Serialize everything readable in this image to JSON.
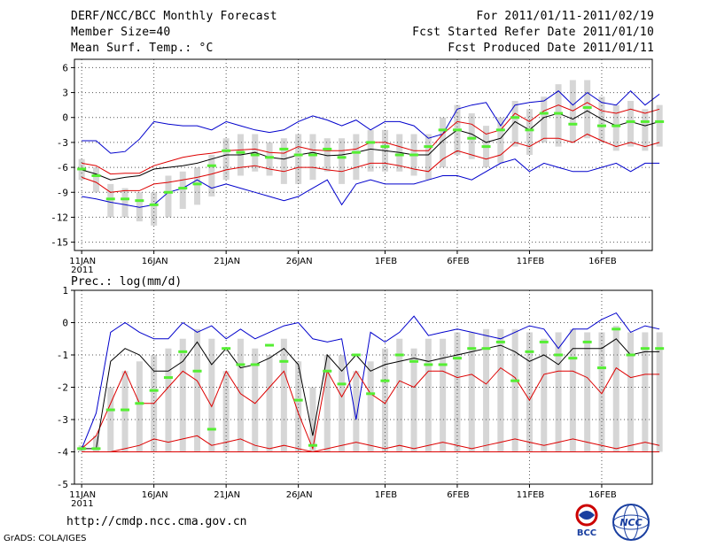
{
  "header": {
    "title": "DERF/NCC/BCC Monthly Forecast",
    "member_size": "Member Size=40",
    "variable": "Mean Surf. Temp.: °C",
    "period": "For 2011/01/11-2011/02/19",
    "started": "Fcst Started Refer Date 2011/01/10",
    "produced": "Fcst Produced Date 2011/01/11"
  },
  "footer": {
    "url": "http://cmdp.ncc.cma.gov.cn",
    "grads": "GrADS: COLA/IGES",
    "logo_bcc": "BCC",
    "logo_ncc": "NCC"
  },
  "colors": {
    "box": "#d6d6d6",
    "median": "#55ee33",
    "mean": "#000000",
    "sd": "#dd0000",
    "extreme": "#0000cc",
    "grid": "#555555"
  },
  "chart_data": [
    {
      "type": "box-plot with lines",
      "title": "Mean Surf. Temp.: °C",
      "x_tick_labels": [
        "11JAN",
        "16JAN",
        "21JAN",
        "26JAN",
        "1FEB",
        "6FEB",
        "11FEB",
        "16FEB"
      ],
      "x_sub_label": "2011",
      "x_tick_days": [
        0,
        5,
        10,
        15,
        21,
        26,
        31,
        36
      ],
      "xlim": [
        -0.5,
        39.5
      ],
      "ylim": [
        -16,
        7
      ],
      "yticks": [
        6,
        3,
        0,
        -3,
        -6,
        -9,
        -12,
        -15
      ],
      "series": [
        {
          "name": "max",
          "color": "extreme",
          "values": [
            -2.8,
            -2.8,
            -4.3,
            -4.1,
            -2.6,
            -0.5,
            -0.8,
            -1.0,
            -1.0,
            -1.5,
            -0.5,
            -1.0,
            -1.5,
            -1.8,
            -1.5,
            -0.5,
            0.2,
            -0.3,
            -1.0,
            -0.3,
            -1.5,
            -0.5,
            -0.5,
            -1.0,
            -2.5,
            -2.0,
            1.0,
            1.5,
            1.8,
            -1.0,
            1.5,
            1.8,
            2.0,
            3.2,
            1.5,
            3.0,
            1.8,
            1.5,
            3.2,
            1.5,
            2.8
          ]
        },
        {
          "name": "upper",
          "color": "sd",
          "values": [
            -5.5,
            -5.8,
            -6.8,
            -6.7,
            -6.7,
            -5.8,
            -5.3,
            -4.8,
            -4.5,
            -4.3,
            -4.0,
            -3.9,
            -3.8,
            -4.2,
            -4.3,
            -3.5,
            -3.9,
            -4.0,
            -4.0,
            -3.8,
            -3.0,
            -3.0,
            -3.5,
            -4.0,
            -4.0,
            -2.0,
            -0.5,
            -0.8,
            -2.0,
            -1.5,
            0.5,
            -0.5,
            0.8,
            1.5,
            0.8,
            1.8,
            0.8,
            0.5,
            1.0,
            0.5,
            1.0
          ]
        },
        {
          "name": "mean",
          "color": "mean",
          "values": [
            -6.3,
            -6.8,
            -7.5,
            -7.2,
            -7.0,
            -6.2,
            -6.0,
            -5.8,
            -5.5,
            -5.0,
            -4.5,
            -4.5,
            -4.2,
            -4.8,
            -5.0,
            -4.5,
            -4.2,
            -4.6,
            -4.5,
            -4.2,
            -3.8,
            -4.0,
            -4.2,
            -4.5,
            -4.5,
            -2.8,
            -1.5,
            -2.0,
            -3.0,
            -2.5,
            -0.5,
            -1.5,
            0.0,
            0.5,
            -0.2,
            0.8,
            -0.2,
            -1.0,
            -0.5,
            -1.0,
            -0.5
          ]
        },
        {
          "name": "lower",
          "color": "sd",
          "values": [
            -7.2,
            -7.8,
            -9.0,
            -8.8,
            -8.8,
            -8.0,
            -7.8,
            -7.5,
            -7.2,
            -6.8,
            -6.3,
            -6.0,
            -5.8,
            -6.2,
            -6.5,
            -6.0,
            -6.0,
            -6.3,
            -6.5,
            -6.0,
            -5.5,
            -5.5,
            -5.8,
            -6.2,
            -6.5,
            -5.0,
            -4.0,
            -4.5,
            -5.0,
            -4.5,
            -3.0,
            -3.5,
            -2.5,
            -2.5,
            -3.0,
            -2.0,
            -2.8,
            -3.5,
            -3.0,
            -3.5,
            -3.0
          ]
        },
        {
          "name": "min",
          "color": "extreme",
          "values": [
            -9.5,
            -9.8,
            -10.2,
            -10.5,
            -10.8,
            -10.5,
            -9.0,
            -8.5,
            -7.5,
            -8.5,
            -8.0,
            -8.5,
            -9.0,
            -9.5,
            -10.0,
            -9.5,
            -8.5,
            -7.5,
            -10.5,
            -8.0,
            -7.5,
            -8.0,
            -8.0,
            -8.0,
            -7.5,
            -7.0,
            -7.0,
            -7.5,
            -6.5,
            -5.5,
            -5.0,
            -6.5,
            -5.5,
            -6.0,
            -6.5,
            -6.5,
            -6.0,
            -5.5,
            -6.5,
            -5.5,
            -5.5
          ]
        }
      ],
      "boxes": [
        [
          -6.5,
          -5.0,
          -7.5
        ],
        [
          -7.5,
          -6.0,
          -9.0
        ],
        [
          -10.0,
          -8.0,
          -12.0
        ],
        [
          -10.0,
          -8.5,
          -12.0
        ],
        [
          -10.5,
          -9.0,
          -12.5
        ],
        [
          -11.0,
          -9.0,
          -13.0
        ],
        [
          -9.5,
          -7.0,
          -12.0
        ],
        [
          -9.5,
          -6.5,
          -11.0
        ],
        [
          -8.5,
          -6.0,
          -10.5
        ],
        [
          -7.0,
          -4.5,
          -9.5
        ],
        [
          -5.0,
          -2.5,
          -7.5
        ],
        [
          -4.5,
          -2.0,
          -7.0
        ],
        [
          -4.5,
          -2.0,
          -6.5
        ],
        [
          -5.0,
          -3.0,
          -7.0
        ],
        [
          -5.0,
          -2.5,
          -8.0
        ],
        [
          -4.5,
          -2.0,
          -8.0
        ],
        [
          -4.5,
          -2.0,
          -7.5
        ],
        [
          -4.5,
          -2.5,
          -6.5
        ],
        [
          -5.0,
          -2.5,
          -8.0
        ],
        [
          -4.5,
          -2.0,
          -7.5
        ],
        [
          -4.0,
          -1.5,
          -6.5
        ],
        [
          -4.0,
          -1.5,
          -6.5
        ],
        [
          -4.5,
          -2.0,
          -6.5
        ],
        [
          -4.5,
          -2.0,
          -7.0
        ],
        [
          -4.5,
          -2.0,
          -7.5
        ],
        [
          -3.5,
          0.0,
          -6.0
        ],
        [
          -2.0,
          1.5,
          -4.5
        ],
        [
          -2.5,
          0.5,
          -5.0
        ],
        [
          -4.0,
          -1.0,
          -6.0
        ],
        [
          -3.0,
          0.0,
          -5.5
        ],
        [
          -1.0,
          2.0,
          -3.5
        ],
        [
          -2.0,
          1.0,
          -4.5
        ],
        [
          0.0,
          2.5,
          -3.0
        ],
        [
          0.5,
          4.0,
          -3.5
        ],
        [
          0.0,
          4.5,
          -3.0
        ],
        [
          0.5,
          4.5,
          -2.5
        ],
        [
          -0.5,
          2.5,
          -3.0
        ],
        [
          -1.5,
          1.5,
          -4.0
        ],
        [
          -1.0,
          2.0,
          -3.5
        ],
        [
          -1.5,
          1.0,
          -4.0
        ],
        [
          -1.0,
          1.5,
          -3.5
        ]
      ],
      "medians": [
        -6.2,
        -7.0,
        -9.8,
        -9.8,
        -10.0,
        -10.5,
        -9.0,
        -8.5,
        -8.0,
        -5.8,
        -4.0,
        -4.2,
        -4.5,
        -4.8,
        -3.8,
        -4.5,
        -4.5,
        -3.8,
        -4.8,
        -4.2,
        -3.0,
        -3.5,
        -4.5,
        -4.5,
        -3.5,
        -1.5,
        -1.5,
        -2.5,
        -3.5,
        -1.5,
        0.0,
        -1.5,
        0.5,
        0.5,
        -0.8,
        1.2,
        -1.0,
        -1.0,
        -0.5,
        -0.5,
        -0.5
      ]
    },
    {
      "type": "box-plot with lines",
      "title": "Prec.: log(mm/d)",
      "x_tick_labels": [
        "11JAN",
        "16JAN",
        "21JAN",
        "26JAN",
        "1FEB",
        "6FEB",
        "11FEB",
        "16FEB"
      ],
      "x_sub_label": "2011",
      "x_tick_days": [
        0,
        5,
        10,
        15,
        21,
        26,
        31,
        36
      ],
      "xlim": [
        -0.5,
        39.5
      ],
      "ylim": [
        -5,
        1
      ],
      "yticks": [
        1,
        0,
        -1,
        -2,
        -3,
        -4,
        -5
      ],
      "series": [
        {
          "name": "max",
          "color": "extreme",
          "values": [
            -3.9,
            -2.8,
            -0.3,
            0.0,
            -0.3,
            -0.5,
            -0.5,
            0.0,
            -0.3,
            -0.1,
            -0.5,
            -0.2,
            -0.5,
            -0.3,
            -0.1,
            0.0,
            -0.5,
            -0.6,
            -0.5,
            -3.0,
            -0.3,
            -0.6,
            -0.3,
            0.2,
            -0.4,
            -0.3,
            -0.2,
            -0.3,
            -0.4,
            -0.5,
            -0.3,
            -0.1,
            -0.2,
            -0.8,
            -0.2,
            -0.2,
            0.1,
            0.3,
            -0.3,
            -0.1,
            -0.2
          ]
        },
        {
          "name": "upper",
          "color": "sd",
          "values": [
            -3.9,
            -3.5,
            -2.5,
            -1.5,
            -2.5,
            -2.5,
            -2.0,
            -1.5,
            -1.8,
            -2.6,
            -1.5,
            -2.2,
            -2.5,
            -2.0,
            -1.5,
            -2.8,
            -3.9,
            -1.5,
            -2.3,
            -1.5,
            -2.2,
            -2.5,
            -1.8,
            -2.0,
            -1.5,
            -1.5,
            -1.7,
            -1.6,
            -1.9,
            -1.4,
            -1.7,
            -2.4,
            -1.6,
            -1.5,
            -1.5,
            -1.7,
            -2.2,
            -1.4,
            -1.7,
            -1.6,
            -1.6
          ]
        },
        {
          "name": "mean",
          "color": "mean",
          "values": [
            -3.9,
            -3.9,
            -1.2,
            -0.8,
            -1.0,
            -1.5,
            -1.5,
            -1.2,
            -0.6,
            -1.3,
            -0.8,
            -1.4,
            -1.3,
            -1.1,
            -0.8,
            -1.3,
            -3.5,
            -1.0,
            -1.5,
            -1.0,
            -1.5,
            -1.3,
            -1.2,
            -1.1,
            -1.2,
            -1.1,
            -1.0,
            -0.9,
            -0.8,
            -0.7,
            -0.9,
            -1.2,
            -1.0,
            -1.3,
            -0.8,
            -0.8,
            -0.8,
            -0.5,
            -1.0,
            -0.9,
            -0.9
          ]
        },
        {
          "name": "lower",
          "color": "sd",
          "values": [
            -4.0,
            -4.0,
            -4.0,
            -3.9,
            -3.8,
            -3.6,
            -3.7,
            -3.6,
            -3.5,
            -3.8,
            -3.7,
            -3.6,
            -3.8,
            -3.9,
            -3.8,
            -3.9,
            -4.0,
            -3.9,
            -3.8,
            -3.7,
            -3.8,
            -3.9,
            -3.8,
            -3.9,
            -3.8,
            -3.7,
            -3.8,
            -3.9,
            -3.8,
            -3.7,
            -3.6,
            -3.7,
            -3.8,
            -3.7,
            -3.6,
            -3.7,
            -3.8,
            -3.9,
            -3.8,
            -3.7,
            -3.8
          ]
        },
        {
          "name": "min",
          "color": "sd",
          "values": [
            -4.0,
            -4.0,
            -4.0,
            -4.0,
            -4.0,
            -4.0,
            -4.0,
            -4.0,
            -4.0,
            -4.0,
            -4.0,
            -4.0,
            -4.0,
            -4.0,
            -4.0,
            -4.0,
            -4.0,
            -4.0,
            -4.0,
            -4.0,
            -4.0,
            -4.0,
            -4.0,
            -4.0,
            -4.0,
            -4.0,
            -4.0,
            -4.0,
            -4.0,
            -4.0,
            -4.0,
            -4.0,
            -4.0,
            -4.0,
            -4.0,
            -4.0,
            -4.0,
            -4.0,
            -4.0,
            -4.0,
            -4.0
          ]
        }
      ],
      "boxes": [
        [
          -4.0,
          -3.8,
          -4.0
        ],
        [
          -4.0,
          -3.5,
          -4.0
        ],
        [
          -3.5,
          -2.0,
          -4.0
        ],
        [
          -3.2,
          -1.5,
          -4.0
        ],
        [
          -3.5,
          -1.2,
          -4.0
        ],
        [
          -3.0,
          -1.0,
          -4.0
        ],
        [
          -2.8,
          -0.8,
          -4.0
        ],
        [
          -2.5,
          -0.5,
          -4.0
        ],
        [
          -2.0,
          -0.2,
          -4.0
        ],
        [
          -2.5,
          -0.5,
          -4.0
        ],
        [
          -3.5,
          -1.5,
          -4.0
        ],
        [
          -2.5,
          -0.5,
          -4.0
        ],
        [
          -2.5,
          -0.8,
          -4.0
        ],
        [
          -3.0,
          -1.0,
          -4.0
        ],
        [
          -2.5,
          -0.5,
          -4.0
        ],
        [
          -3.0,
          -1.2,
          -4.0
        ],
        [
          -3.8,
          -2.0,
          -4.0
        ],
        [
          -3.0,
          -1.0,
          -4.0
        ],
        [
          -2.8,
          -1.0,
          -4.0
        ],
        [
          -3.2,
          -1.5,
          -4.0
        ],
        [
          -3.0,
          -1.2,
          -4.0
        ],
        [
          -2.8,
          -0.8,
          -4.0
        ],
        [
          -2.5,
          -0.5,
          -4.0
        ],
        [
          -2.8,
          -0.8,
          -4.0
        ],
        [
          -2.5,
          -0.5,
          -4.0
        ],
        [
          -2.5,
          -0.5,
          -4.0
        ],
        [
          -2.5,
          -0.3,
          -4.0
        ],
        [
          -2.5,
          -0.3,
          -4.0
        ],
        [
          -2.5,
          -0.2,
          -4.0
        ],
        [
          -2.5,
          -0.2,
          -4.0
        ],
        [
          -2.5,
          -0.2,
          -4.0
        ],
        [
          -2.5,
          -0.3,
          -4.0
        ],
        [
          -2.5,
          -0.5,
          -4.0
        ],
        [
          -2.5,
          -0.3,
          -4.0
        ],
        [
          -2.5,
          -0.2,
          -4.0
        ],
        [
          -2.5,
          -0.3,
          -4.0
        ],
        [
          -2.5,
          -0.3,
          -4.0
        ],
        [
          -2.5,
          -0.1,
          -4.0
        ],
        [
          -2.5,
          -0.3,
          -4.0
        ],
        [
          -2.5,
          -0.3,
          -4.0
        ],
        [
          -2.5,
          -0.3,
          -4.0
        ]
      ],
      "medians": [
        -3.9,
        -3.9,
        -2.7,
        -2.7,
        -2.5,
        -2.1,
        -1.7,
        -0.9,
        -1.5,
        -3.3,
        -0.8,
        -1.3,
        -1.3,
        -0.7,
        -1.2,
        -2.4,
        -3.8,
        -1.5,
        -1.9,
        -1.0,
        -2.2,
        -1.8,
        -1.0,
        -1.2,
        -1.3,
        -1.3,
        -1.1,
        -0.8,
        -0.8,
        -0.6,
        -1.8,
        -0.9,
        -0.6,
        -1.0,
        -1.1,
        -0.6,
        -1.4,
        -0.2,
        -1.0,
        -0.8,
        -0.8
      ]
    }
  ]
}
